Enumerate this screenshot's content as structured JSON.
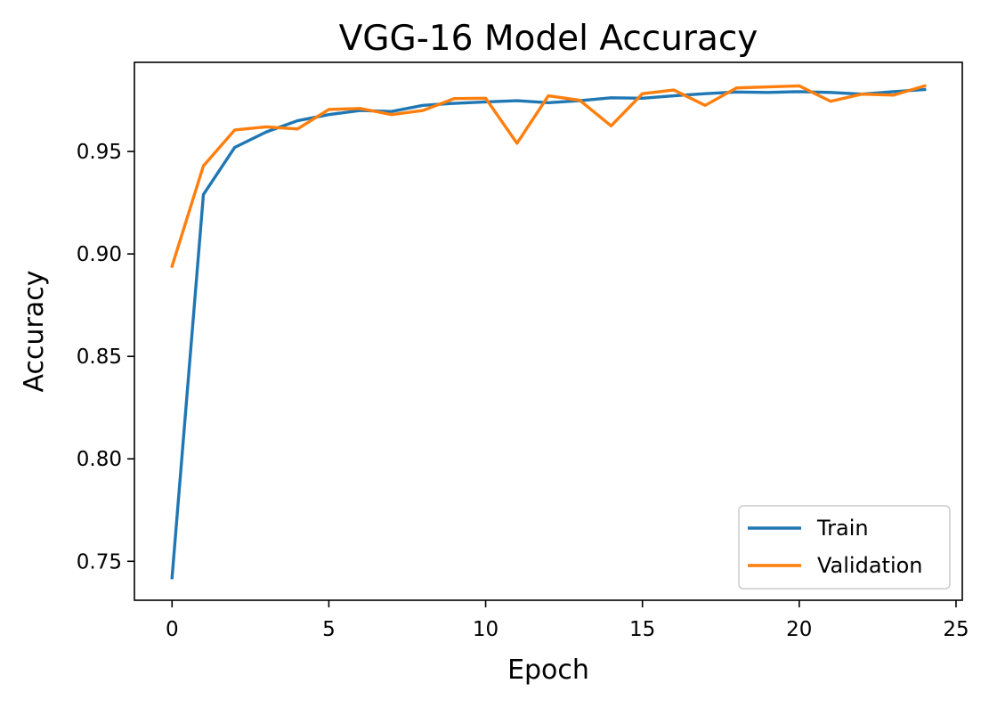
{
  "chart_data": {
    "type": "line",
    "title": "VGG-16 Model Accuracy",
    "xlabel": "Epoch",
    "ylabel": "Accuracy",
    "xlim": [
      -1.2,
      25.2
    ],
    "ylim": [
      0.731,
      0.9935
    ],
    "xticks": [
      0,
      5,
      10,
      15,
      20,
      25
    ],
    "xtick_labels": [
      "0",
      "5",
      "10",
      "15",
      "20",
      "25"
    ],
    "yticks": [
      0.75,
      0.8,
      0.85,
      0.9,
      0.95
    ],
    "ytick_labels": [
      "0.75",
      "0.80",
      "0.85",
      "0.90",
      "0.95"
    ],
    "grid": false,
    "legend_position": "lower-right",
    "x": [
      0,
      1,
      2,
      3,
      4,
      5,
      6,
      7,
      8,
      9,
      10,
      11,
      12,
      13,
      14,
      15,
      16,
      17,
      18,
      19,
      20,
      21,
      22,
      23,
      24
    ],
    "series": [
      {
        "name": "Train",
        "color": "#1f77b4",
        "values": [
          0.742,
          0.929,
          0.952,
          0.9595,
          0.965,
          0.968,
          0.97,
          0.9695,
          0.9725,
          0.9735,
          0.9742,
          0.9748,
          0.9738,
          0.9748,
          0.9762,
          0.976,
          0.9772,
          0.9782,
          0.979,
          0.9788,
          0.9792,
          0.9788,
          0.978,
          0.9792,
          0.9802
        ]
      },
      {
        "name": "Validation",
        "color": "#ff7f0e",
        "values": [
          0.894,
          0.943,
          0.9605,
          0.962,
          0.961,
          0.9705,
          0.971,
          0.968,
          0.97,
          0.9758,
          0.976,
          0.954,
          0.9772,
          0.975,
          0.9625,
          0.9782,
          0.98,
          0.9725,
          0.981,
          0.9815,
          0.982,
          0.9745,
          0.978,
          0.9775,
          0.982
        ]
      }
    ]
  }
}
